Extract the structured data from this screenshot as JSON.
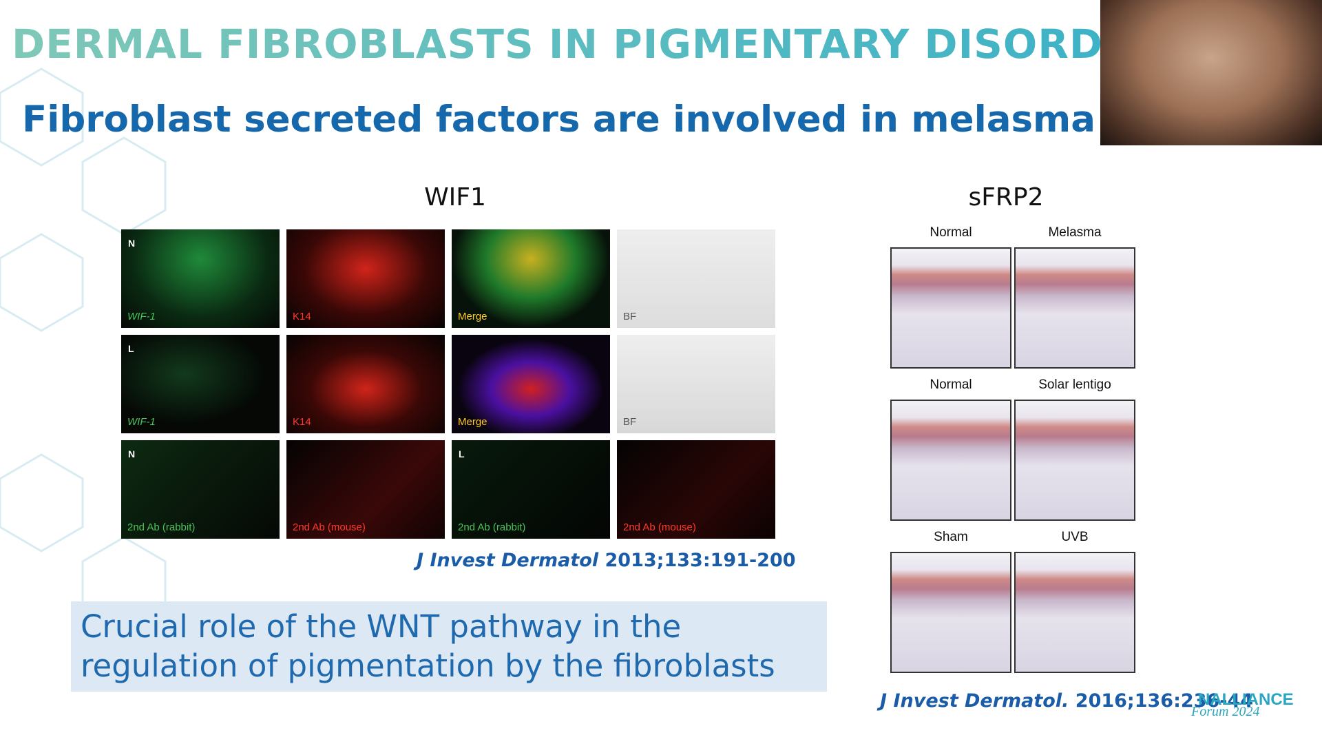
{
  "header": {
    "title": "DERMAL FIBROBLASTS IN PIGMENTARY DISORDERS",
    "subtitle": "Fibroblast secreted factors are involved in melasma"
  },
  "wif1": {
    "label": "WIF1",
    "panels": [
      [
        {
          "corner": "N",
          "caption": "WIF-1"
        },
        {
          "caption": "K14"
        },
        {
          "caption": "Merge"
        },
        {
          "caption": "BF"
        }
      ],
      [
        {
          "corner": "L",
          "caption": "WIF-1"
        },
        {
          "caption": "K14"
        },
        {
          "caption": "Merge"
        },
        {
          "caption": "BF"
        }
      ],
      [
        {
          "corner": "N",
          "caption": "2nd Ab (rabbit)"
        },
        {
          "caption": "2nd Ab (mouse)"
        },
        {
          "corner": "L",
          "caption": "2nd Ab (rabbit)"
        },
        {
          "caption": "2nd Ab (mouse)"
        }
      ]
    ],
    "citation": {
      "journal": "J Invest Dermatol",
      "ref": "2013;133:191-200"
    }
  },
  "sfrp2": {
    "label": "sFRP2",
    "rows": [
      [
        "Normal",
        "Melasma"
      ],
      [
        "Normal",
        "Solar lentigo"
      ],
      [
        "Sham",
        "UVB"
      ]
    ],
    "citation": {
      "journal": "J Invest Dermatol.",
      "ref": "2016;136:236-44"
    }
  },
  "callout": {
    "lines": [
      "Crucial role of the WNT pathway in the",
      "regulation of pigmentation by the fibroblasts"
    ]
  },
  "logo": {
    "name": "NALLIANCE",
    "sub": "Forum 2024"
  }
}
